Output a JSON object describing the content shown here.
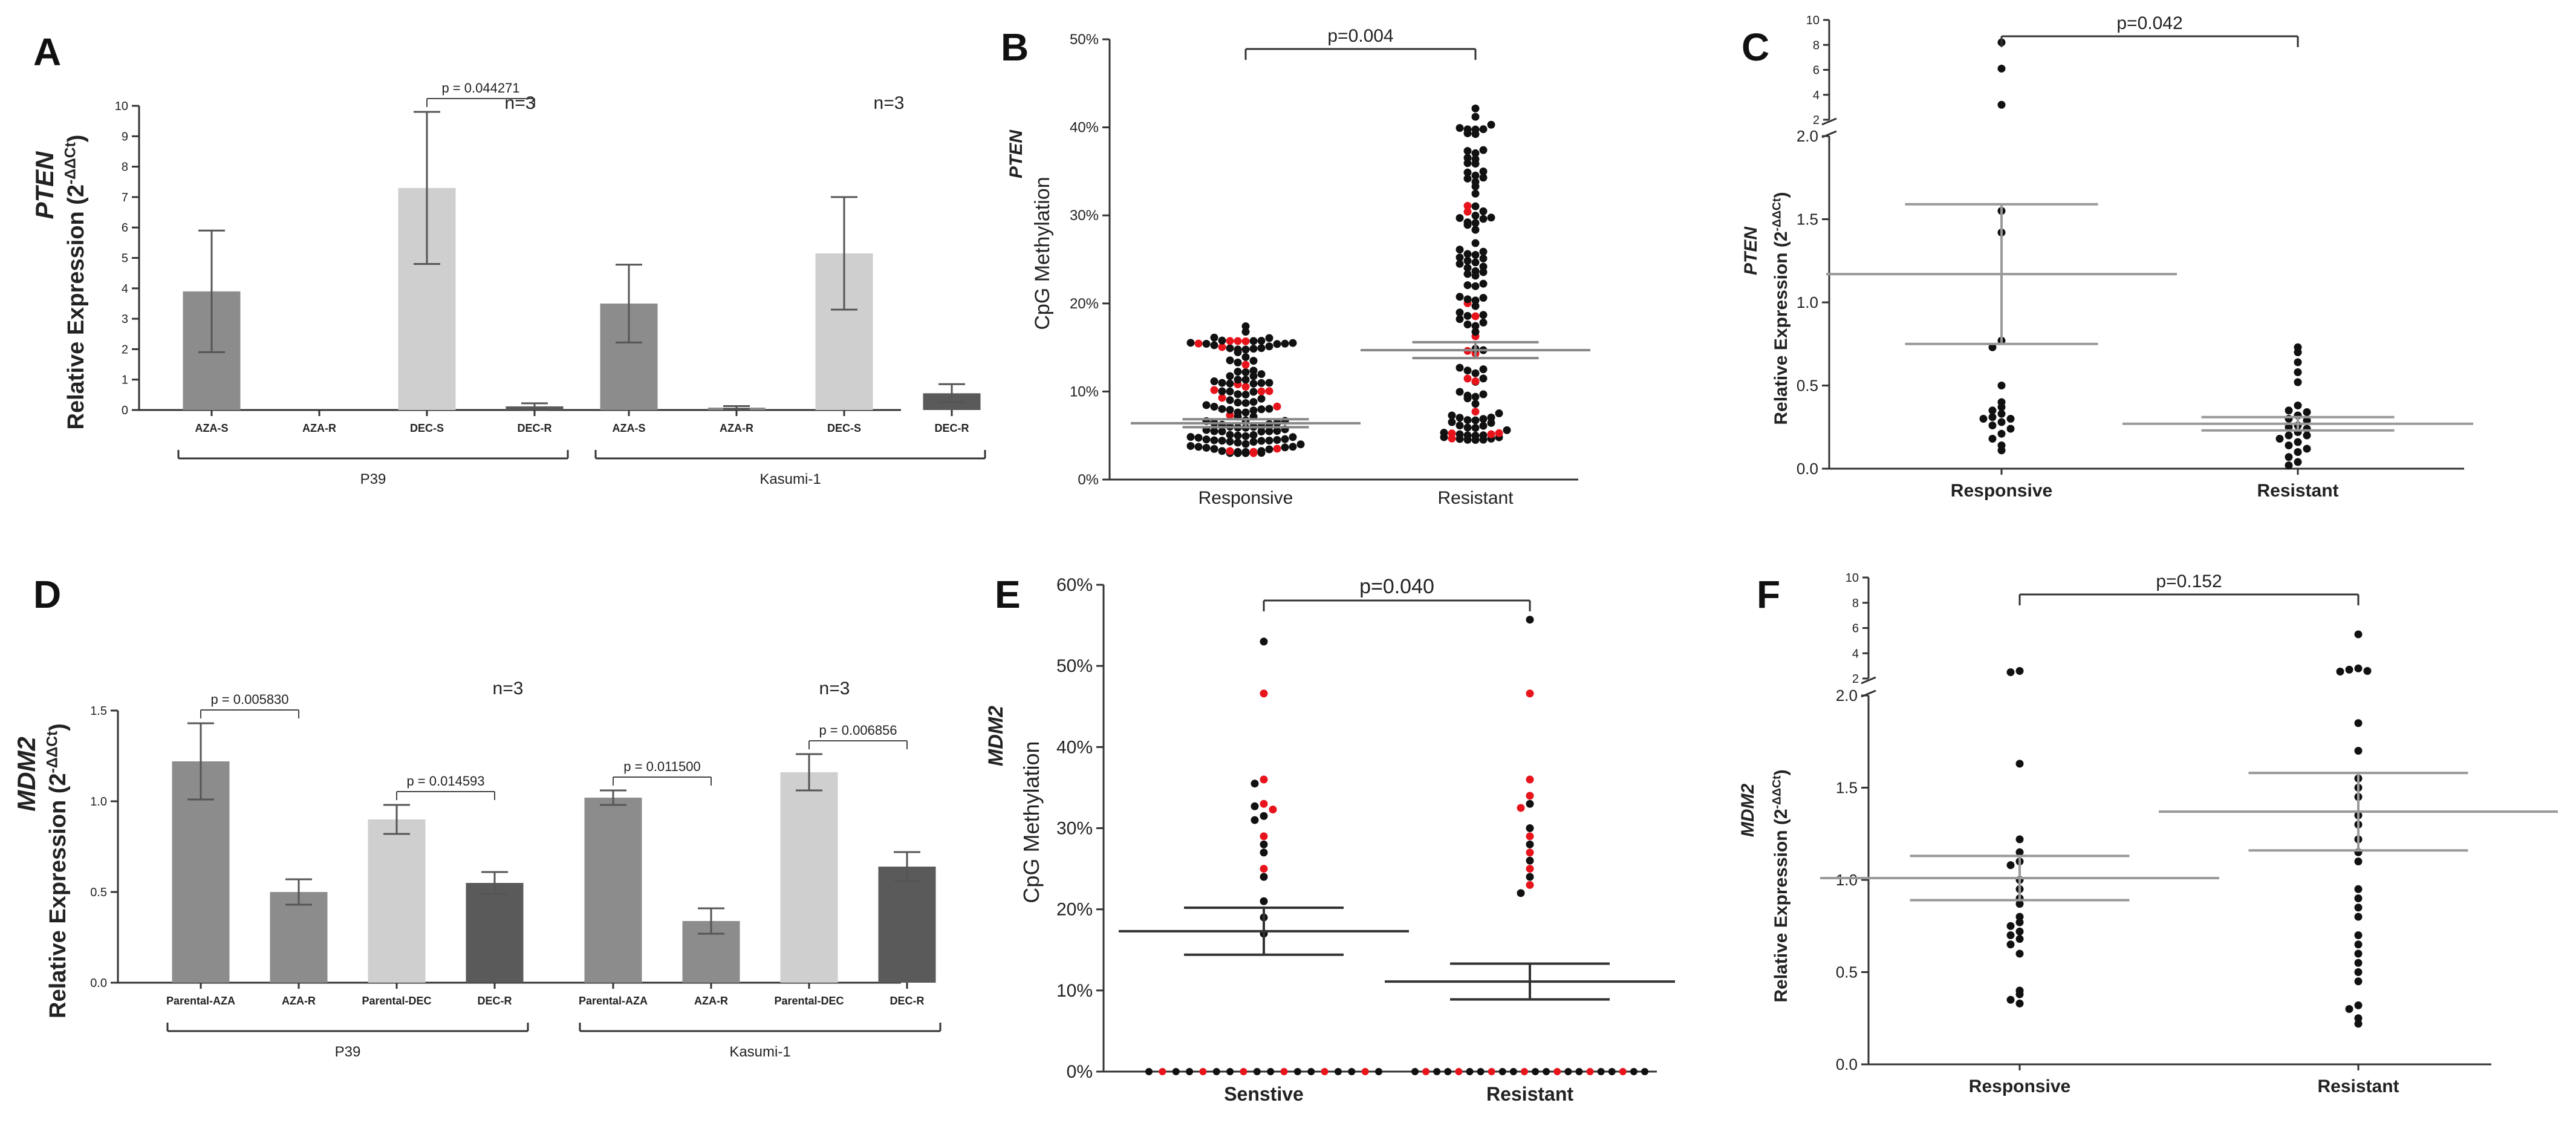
{
  "figure": {
    "type": "multi-panel scientific figure"
  },
  "chart_data": [
    {
      "panel": "A",
      "type": "bar",
      "ylabel_gene": "PTEN",
      "ylabel": "Relative  Expression (2",
      "ylabel_sup": "-ΔΔCt",
      "ylabel_close": ")",
      "yticks": [
        "0",
        "1",
        "2",
        "3",
        "4",
        "5",
        "6",
        "7",
        "8",
        "9",
        "10"
      ],
      "ylim": [
        0,
        10
      ],
      "n_labels": [
        "n=3",
        "n=3"
      ],
      "groups": [
        {
          "name": "P39",
          "categories": [
            "AZA-S",
            "AZA-R",
            "DEC-S",
            "DEC-R"
          ],
          "values": [
            3.9,
            0.0,
            7.3,
            0.12
          ],
          "errors": [
            2.0,
            0.0,
            2.5,
            0.1
          ]
        },
        {
          "name": "Kasumi-1",
          "categories": [
            "AZA-S",
            "AZA-R",
            "DEC-S",
            "DEC-R"
          ],
          "values": [
            3.5,
            0.08,
            5.15,
            0.55
          ],
          "errors": [
            1.28,
            0.05,
            1.85,
            0.3
          ]
        }
      ],
      "annotations": [
        {
          "text": "p =  0.044271",
          "between": [
            "DEC-S",
            "DEC-R"
          ],
          "group": "P39"
        }
      ],
      "bar_colors": [
        "#8c8c8c",
        "#8c8c8c",
        "#cfcfcf",
        "#5a5a5a"
      ]
    },
    {
      "panel": "B",
      "type": "scatter",
      "ylabel_gene": "PTEN",
      "ylabel": "CpG Methylation",
      "yticks": [
        "0%",
        "10%",
        "20%",
        "30%",
        "40%",
        "50%"
      ],
      "ylim": [
        0,
        50
      ],
      "categories": [
        "Responsive",
        "Resistant"
      ],
      "pvalue": "p=0.004",
      "mean": [
        6.4,
        14.7
      ],
      "sem": [
        0.45,
        0.9
      ],
      "point_range": [
        [
          3,
          17.5
        ],
        [
          4.5,
          43
        ]
      ],
      "point_counts": [
        130,
        120
      ],
      "red_fraction": 0.12
    },
    {
      "panel": "C",
      "type": "scatter",
      "ylabel_gene": "PTEN",
      "ylabel": "Relative  Expression (2",
      "ylabel_sup": "-ΔΔCt",
      "ylabel_close": ")",
      "yticks_lower": [
        "0.0",
        "0.5",
        "1.0",
        "1.5",
        "2.0"
      ],
      "ylim_lower": [
        0,
        2.0
      ],
      "yticks_upper": [
        "2",
        "4",
        "6",
        "8",
        "10"
      ],
      "ylim_upper": [
        2,
        10
      ],
      "categories": [
        "Responsive",
        "Resistant"
      ],
      "pvalue": "p=0.042",
      "mean": [
        1.17,
        0.27
      ],
      "sem": [
        0.42,
        0.04
      ],
      "points": [
        [
          8.2,
          6.1,
          3.2,
          1.55,
          1.42,
          0.77,
          0.73,
          0.5,
          0.4,
          0.37,
          0.35,
          0.33,
          0.31,
          0.3,
          0.3,
          0.28,
          0.26,
          0.24,
          0.21,
          0.18,
          0.14,
          0.11
        ],
        [
          0.73,
          0.7,
          0.64,
          0.58,
          0.52,
          0.38,
          0.35,
          0.34,
          0.32,
          0.3,
          0.29,
          0.26,
          0.25,
          0.24,
          0.22,
          0.2,
          0.2,
          0.18,
          0.16,
          0.14,
          0.12,
          0.1,
          0.07,
          0.04,
          0.02
        ]
      ]
    },
    {
      "panel": "D",
      "type": "bar",
      "ylabel_gene": "MDM2",
      "ylabel": "Relative  Expression (2",
      "ylabel_sup": "-ΔΔCt",
      "ylabel_close": ")",
      "yticks": [
        "0.0",
        "0.5",
        "1.0",
        "1.5"
      ],
      "ylim": [
        0,
        1.5
      ],
      "n_labels": [
        "n=3",
        "n=3"
      ],
      "groups": [
        {
          "name": "P39",
          "categories": [
            "Parental-AZA",
            "AZA-R",
            "Parental-DEC",
            "DEC-R"
          ],
          "values": [
            1.22,
            0.5,
            0.9,
            0.55
          ],
          "errors": [
            0.21,
            0.07,
            0.08,
            0.06
          ]
        },
        {
          "name": "Kasumi-1",
          "categories": [
            "Parental-AZA",
            "AZA-R",
            "Parental-DEC",
            "DEC-R"
          ],
          "values": [
            1.02,
            0.34,
            1.16,
            0.64
          ],
          "errors": [
            0.04,
            0.07,
            0.1,
            0.08
          ]
        }
      ],
      "annotations": [
        {
          "text": "p =  0.005830",
          "between": [
            "Parental-AZA",
            "AZA-R"
          ],
          "group": "P39"
        },
        {
          "text": "p =  0.014593",
          "between": [
            "Parental-DEC",
            "DEC-R"
          ],
          "group": "P39"
        },
        {
          "text": "p =  0.011500",
          "between": [
            "Parental-AZA",
            "AZA-R"
          ],
          "group": "Kasumi-1"
        },
        {
          "text": "p =  0.006856",
          "between": [
            "Parental-DEC",
            "DEC-R"
          ],
          "group": "Kasumi-1"
        }
      ],
      "bar_colors": [
        "#8c8c8c",
        "#8c8c8c",
        "#cfcfcf",
        "#5a5a5a"
      ]
    },
    {
      "panel": "E",
      "type": "scatter",
      "ylabel_gene": "MDM2",
      "ylabel": "CpG Methylation",
      "yticks": [
        "0%",
        "10%",
        "20%",
        "30%",
        "40%",
        "50%",
        "60%"
      ],
      "ylim": [
        0,
        60
      ],
      "categories": [
        "Senstive",
        "Resistant"
      ],
      "pvalue": "p=0.040",
      "mean": [
        17.3,
        11.1
      ],
      "sem": [
        2.9,
        2.2
      ],
      "points": [
        [
          53,
          46.6,
          36,
          35.5,
          33,
          32.7,
          32.3,
          31.5,
          31,
          29,
          28,
          27,
          25,
          24,
          21,
          19,
          17
        ],
        [
          55.7,
          46.6,
          36,
          34,
          33,
          32.5,
          30,
          29,
          28,
          27,
          26,
          25,
          24,
          23,
          22
        ]
      ],
      "red_points": [
        [
          46.6,
          36,
          33,
          32.3,
          29,
          25
        ],
        [
          46.6,
          36,
          34,
          32.5,
          29,
          27,
          25,
          23
        ]
      ],
      "zero_counts": [
        18,
        22
      ]
    },
    {
      "panel": "F",
      "type": "scatter",
      "ylabel_gene": "MDM2",
      "ylabel": "Relative  Expression (2",
      "ylabel_sup": "-ΔΔCt",
      "ylabel_close": ")",
      "yticks_lower": [
        "0.0",
        "0.5",
        "1.0",
        "1.5",
        "2.0"
      ],
      "ylim_lower": [
        0,
        2.0
      ],
      "yticks_upper": [
        "2",
        "4",
        "6",
        "8",
        "10"
      ],
      "ylim_upper": [
        2,
        10
      ],
      "categories": [
        "Responsive",
        "Resistant"
      ],
      "pvalue": "p=0.152",
      "mean": [
        1.01,
        1.37
      ],
      "sem": [
        0.12,
        0.21
      ],
      "points": [
        [
          2.6,
          2.5,
          1.63,
          1.22,
          1.15,
          1.1,
          1.08,
          1.0,
          0.95,
          0.9,
          0.87,
          0.8,
          0.77,
          0.75,
          0.72,
          0.7,
          0.68,
          0.65,
          0.6,
          0.4,
          0.38,
          0.35,
          0.33
        ],
        [
          5.5,
          2.8,
          2.7,
          2.6,
          2.55,
          1.85,
          1.7,
          1.55,
          1.5,
          1.45,
          1.35,
          1.3,
          1.22,
          1.15,
          1.1,
          0.95,
          0.9,
          0.85,
          0.8,
          0.7,
          0.65,
          0.6,
          0.55,
          0.5,
          0.45,
          0.32,
          0.3,
          0.25,
          0.22
        ]
      ]
    }
  ]
}
